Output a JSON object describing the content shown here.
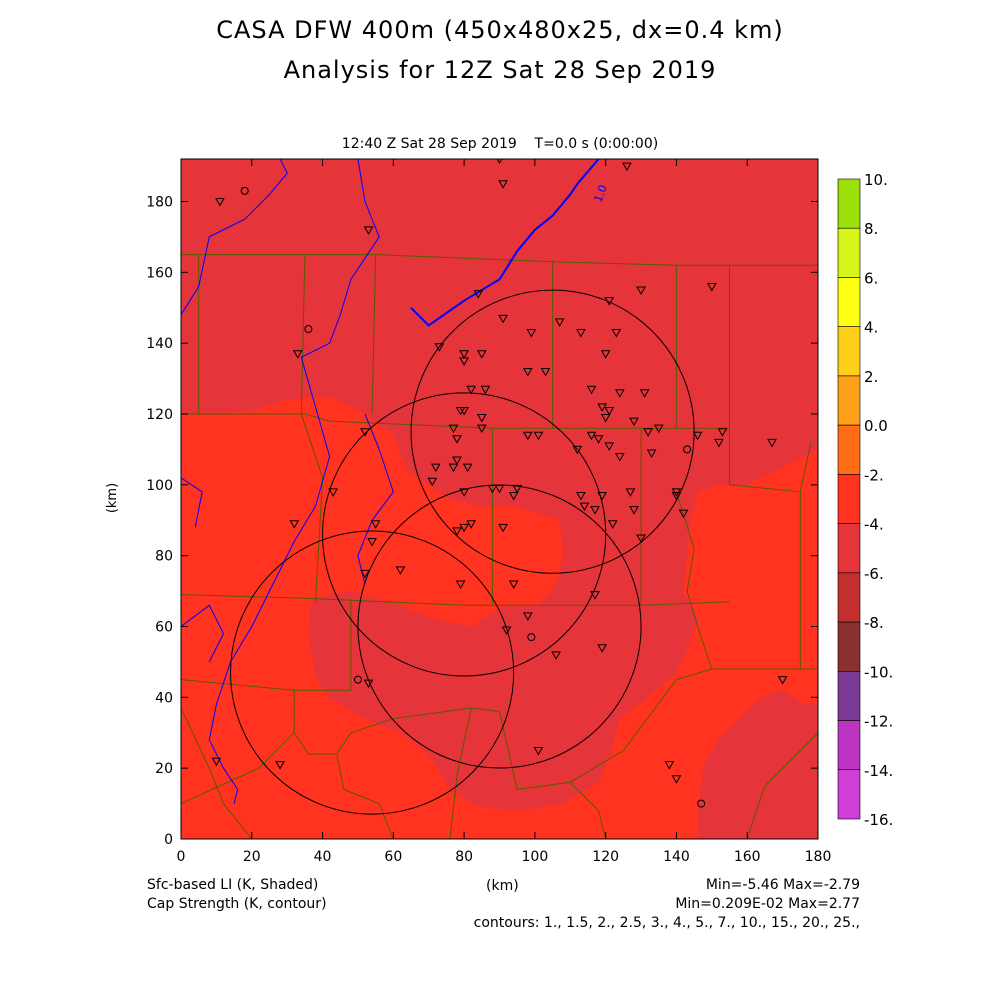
{
  "header": {
    "title_line1": "CASA DFW 400m (450x480x25, dx=0.4 km)",
    "title_line2": "Analysis for 12Z Sat 28 Sep 2019",
    "subtitle": "12:40 Z Sat 28 Sep 2019    T=0.0 s (0:00:00)"
  },
  "footer": {
    "shaded_label": "Sfc-based LI (K, Shaded)",
    "contour_label": "Cap Strength (K, contour)",
    "xunit": "(km)",
    "shaded_stats": "Min=-5.46 Max=-2.79",
    "contour_stats": "Min=0.209E-02 Max=2.77",
    "contours": "contours: 1., 1.5, 2., 2.5, 3., 4., 5., 7., 10., 15., 20., 25.,"
  },
  "colors": {
    "field_warm": "#ff3320",
    "field_cool": "#e5343a",
    "county_line": "#5a5a00",
    "water": "#0000ff",
    "contour": "#000000"
  },
  "chart_data": {
    "type": "heatmap",
    "xlabel": "(km)",
    "ylabel": "(km)",
    "xlim": [
      0,
      180
    ],
    "ylim": [
      0,
      192
    ],
    "xticks": [
      0,
      20,
      40,
      60,
      80,
      100,
      120,
      140,
      160,
      180
    ],
    "yticks": [
      0,
      20,
      40,
      60,
      80,
      100,
      120,
      140,
      160,
      180
    ],
    "colorbar": {
      "levels": [
        10,
        8,
        6,
        4,
        2,
        0,
        -2,
        -4,
        -6,
        -8,
        -10,
        -12,
        -14,
        -16
      ],
      "labels": [
        "10.",
        "8.",
        "6.",
        "4.",
        "2.",
        "0.0",
        "-2.",
        "-4.",
        "-6.",
        "-8.",
        "-10.",
        "-12.",
        "-14.",
        "-16."
      ],
      "colors": [
        "#9be00a",
        "#d6f51a",
        "#ffff14",
        "#ffcf1a",
        "#ffa01a",
        "#ff6e14",
        "#ff3320",
        "#e5343a",
        "#c4302f",
        "#8b3030",
        "#7a3a96",
        "#bb35c2",
        "#d23ed8"
      ]
    },
    "contour_label": "1.0",
    "radar_circles": [
      {
        "cx": 54,
        "cy": 47,
        "r": 40
      },
      {
        "cx": 105,
        "cy": 115,
        "r": 40
      },
      {
        "cx": 80,
        "cy": 86,
        "r": 40
      },
      {
        "cx": 90,
        "cy": 60,
        "r": 40
      }
    ],
    "stations_triangle": [
      [
        11,
        180
      ],
      [
        53,
        172
      ],
      [
        90,
        192
      ],
      [
        126,
        190
      ],
      [
        91,
        185
      ],
      [
        150,
        156
      ],
      [
        121,
        152
      ],
      [
        130,
        155
      ],
      [
        84,
        154
      ],
      [
        91,
        147
      ],
      [
        107,
        146
      ],
      [
        33,
        137
      ],
      [
        73,
        139
      ],
      [
        99,
        143
      ],
      [
        113,
        143
      ],
      [
        120,
        137
      ],
      [
        123,
        143
      ],
      [
        80,
        137
      ],
      [
        85,
        137
      ],
      [
        80,
        135
      ],
      [
        98,
        132
      ],
      [
        116,
        127
      ],
      [
        103,
        132
      ],
      [
        124,
        126
      ],
      [
        131,
        126
      ],
      [
        82,
        127
      ],
      [
        86,
        127
      ],
      [
        79,
        121
      ],
      [
        119,
        122
      ],
      [
        121,
        121
      ],
      [
        85,
        119
      ],
      [
        120,
        119
      ],
      [
        128,
        118
      ],
      [
        77,
        116
      ],
      [
        132,
        115
      ],
      [
        135,
        116
      ],
      [
        112,
        110
      ],
      [
        116,
        114
      ],
      [
        118,
        113
      ],
      [
        124,
        108
      ],
      [
        101,
        114
      ],
      [
        85,
        116
      ],
      [
        80,
        121
      ],
      [
        78,
        113
      ],
      [
        98,
        114
      ],
      [
        121,
        111
      ],
      [
        133,
        109
      ],
      [
        78,
        107
      ],
      [
        77,
        105
      ],
      [
        81,
        105
      ],
      [
        72,
        105
      ],
      [
        71,
        101
      ],
      [
        80,
        98
      ],
      [
        90,
        99
      ],
      [
        95,
        99
      ],
      [
        113,
        97
      ],
      [
        119,
        97
      ],
      [
        127,
        98
      ],
      [
        140,
        98
      ],
      [
        140,
        97
      ],
      [
        117,
        93
      ],
      [
        114,
        94
      ],
      [
        128,
        93
      ],
      [
        122,
        89
      ],
      [
        130,
        85
      ],
      [
        94,
        97
      ],
      [
        88,
        99
      ],
      [
        142,
        92
      ],
      [
        152,
        112
      ],
      [
        146,
        114
      ],
      [
        153,
        115
      ],
      [
        167,
        112
      ],
      [
        52,
        115
      ],
      [
        43,
        98
      ],
      [
        32,
        89
      ],
      [
        55,
        89
      ],
      [
        54,
        84
      ],
      [
        78,
        87
      ],
      [
        80,
        88
      ],
      [
        82,
        89
      ],
      [
        91,
        88
      ],
      [
        52,
        75
      ],
      [
        62,
        76
      ],
      [
        79,
        72
      ],
      [
        94,
        72
      ],
      [
        117,
        69
      ],
      [
        98,
        63
      ],
      [
        92,
        59
      ],
      [
        119,
        54
      ],
      [
        106,
        52
      ],
      [
        53,
        44
      ],
      [
        170,
        45
      ],
      [
        101,
        25
      ],
      [
        28,
        21
      ],
      [
        10,
        22
      ],
      [
        138,
        21
      ],
      [
        140,
        17
      ]
    ],
    "stations_circle": [
      [
        18,
        183
      ],
      [
        36,
        144
      ],
      [
        143,
        110
      ],
      [
        50,
        45
      ],
      [
        99,
        57
      ],
      [
        147,
        10
      ]
    ]
  }
}
